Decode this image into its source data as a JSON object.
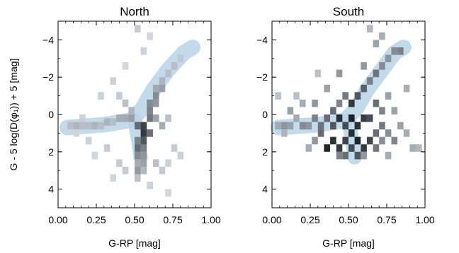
{
  "chart_data": [
    {
      "type": "heatmap",
      "title": "North",
      "xlabel": "G-RP [mag]",
      "ylabel": "G - 5 log(D(φ₁)) + 5 [mag]",
      "xlim": [
        0.0,
        1.0
      ],
      "ylim": [
        5.0,
        -5.0
      ],
      "y_inverted": true,
      "x_ticks": [
        "0.00",
        "0.25",
        "0.50",
        "0.75",
        "1.00"
      ],
      "y_ticks": [
        "−4",
        "−2",
        "0",
        "2",
        "4"
      ],
      "y_tick_values": [
        -4,
        -2,
        0,
        2,
        4
      ],
      "x_tick_values": [
        0.0,
        0.25,
        0.5,
        0.75,
        1.0
      ],
      "grid": false,
      "bin_width": [
        0.04,
        0.4
      ],
      "colormap": "greys",
      "isochrone_band": {
        "color": "#b9d3e8",
        "points": [
          [
            0.06,
            0.7
          ],
          [
            0.3,
            0.55
          ],
          [
            0.48,
            0.3
          ],
          [
            0.55,
            -0.3
          ],
          [
            0.62,
            -1.3
          ],
          [
            0.72,
            -2.4
          ],
          [
            0.82,
            -3.3
          ],
          [
            0.88,
            -3.6
          ]
        ],
        "branch": [
          [
            0.5,
            0.3
          ],
          [
            0.52,
            1.2
          ],
          [
            0.54,
            2.3
          ]
        ]
      },
      "bins": [
        {
          "x": 0.08,
          "y": 0.6,
          "v": 0.2
        },
        {
          "x": 0.12,
          "y": 0.6,
          "v": 0.25
        },
        {
          "x": 0.16,
          "y": 0.6,
          "v": 0.2
        },
        {
          "x": 0.2,
          "y": 0.6,
          "v": 0.2
        },
        {
          "x": 0.24,
          "y": 0.6,
          "v": 0.25
        },
        {
          "x": 0.28,
          "y": 0.6,
          "v": 0.2
        },
        {
          "x": 0.32,
          "y": 0.4,
          "v": 0.25
        },
        {
          "x": 0.36,
          "y": 0.4,
          "v": 0.2
        },
        {
          "x": 0.4,
          "y": 0.2,
          "v": 0.3
        },
        {
          "x": 0.44,
          "y": 0.2,
          "v": 0.3
        },
        {
          "x": 0.48,
          "y": 0.2,
          "v": 0.35
        },
        {
          "x": 0.52,
          "y": 0.6,
          "v": 0.6
        },
        {
          "x": 0.56,
          "y": 0.6,
          "v": 0.8
        },
        {
          "x": 0.56,
          "y": 1.0,
          "v": 0.85
        },
        {
          "x": 0.6,
          "y": 1.0,
          "v": 0.6
        },
        {
          "x": 0.56,
          "y": 1.4,
          "v": 0.7
        },
        {
          "x": 0.52,
          "y": 1.4,
          "v": 0.5
        },
        {
          "x": 0.52,
          "y": 1.8,
          "v": 0.6
        },
        {
          "x": 0.56,
          "y": 1.8,
          "v": 0.5
        },
        {
          "x": 0.52,
          "y": 2.2,
          "v": 0.45
        },
        {
          "x": 0.56,
          "y": 2.2,
          "v": 0.4
        },
        {
          "x": 0.52,
          "y": 2.6,
          "v": 0.3
        },
        {
          "x": 0.56,
          "y": 2.6,
          "v": 0.35
        },
        {
          "x": 0.52,
          "y": 3.0,
          "v": 0.4
        },
        {
          "x": 0.56,
          "y": 3.0,
          "v": 0.25
        },
        {
          "x": 0.52,
          "y": 3.4,
          "v": 0.2
        },
        {
          "x": 0.6,
          "y": 0.2,
          "v": 0.55
        },
        {
          "x": 0.6,
          "y": -0.2,
          "v": 0.5
        },
        {
          "x": 0.6,
          "y": -0.6,
          "v": 0.45
        },
        {
          "x": 0.64,
          "y": -0.6,
          "v": 0.4
        },
        {
          "x": 0.64,
          "y": -1.0,
          "v": 0.45
        },
        {
          "x": 0.64,
          "y": -1.4,
          "v": 0.3
        },
        {
          "x": 0.68,
          "y": -1.4,
          "v": 0.35
        },
        {
          "x": 0.68,
          "y": -1.8,
          "v": 0.25
        },
        {
          "x": 0.72,
          "y": -2.2,
          "v": 0.2
        },
        {
          "x": 0.76,
          "y": -2.6,
          "v": 0.2
        },
        {
          "x": 0.8,
          "y": -3.0,
          "v": 0.15
        },
        {
          "x": 0.68,
          "y": 0.6,
          "v": 0.3
        },
        {
          "x": 0.64,
          "y": 0.2,
          "v": 0.35
        },
        {
          "x": 0.72,
          "y": 0.2,
          "v": 0.2
        },
        {
          "x": 0.4,
          "y": -1.0,
          "v": 0.15
        },
        {
          "x": 0.28,
          "y": -1.0,
          "v": 0.12
        },
        {
          "x": 0.36,
          "y": -1.8,
          "v": 0.12
        },
        {
          "x": 0.44,
          "y": -2.6,
          "v": 0.1
        },
        {
          "x": 0.56,
          "y": -3.4,
          "v": 0.12
        },
        {
          "x": 0.6,
          "y": -4.2,
          "v": 0.1
        },
        {
          "x": 0.52,
          "y": -4.6,
          "v": 0.15
        },
        {
          "x": 0.2,
          "y": 1.4,
          "v": 0.12
        },
        {
          "x": 0.24,
          "y": 2.2,
          "v": 0.1
        },
        {
          "x": 0.32,
          "y": 1.8,
          "v": 0.15
        },
        {
          "x": 0.4,
          "y": 2.6,
          "v": 0.15
        },
        {
          "x": 0.44,
          "y": 3.0,
          "v": 0.15
        },
        {
          "x": 0.36,
          "y": 3.4,
          "v": 0.1
        },
        {
          "x": 0.64,
          "y": 2.6,
          "v": 0.2
        },
        {
          "x": 0.68,
          "y": 3.0,
          "v": 0.15
        },
        {
          "x": 0.72,
          "y": 2.6,
          "v": 0.12
        },
        {
          "x": 0.76,
          "y": 1.8,
          "v": 0.15
        },
        {
          "x": 0.8,
          "y": 2.2,
          "v": 0.12
        },
        {
          "x": 0.6,
          "y": 3.8,
          "v": 0.12
        },
        {
          "x": 0.72,
          "y": 4.2,
          "v": 0.1
        },
        {
          "x": 0.44,
          "y": -0.6,
          "v": 0.2
        },
        {
          "x": 0.48,
          "y": -0.2,
          "v": 0.25
        },
        {
          "x": 0.12,
          "y": 1.0,
          "v": 0.1
        },
        {
          "x": 0.16,
          "y": 0.2,
          "v": 0.12
        }
      ]
    },
    {
      "type": "heatmap",
      "title": "South",
      "xlabel": "G-RP [mag]",
      "ylabel": "",
      "xlim": [
        0.0,
        1.0
      ],
      "ylim": [
        5.0,
        -5.0
      ],
      "y_inverted": true,
      "x_ticks": [
        "0.00",
        "0.25",
        "0.50",
        "0.75",
        "1.00"
      ],
      "y_ticks": [
        "−4",
        "−2",
        "0",
        "2",
        "4"
      ],
      "y_tick_values": [
        -4,
        -2,
        0,
        2,
        4
      ],
      "x_tick_values": [
        0.0,
        0.25,
        0.5,
        0.75,
        1.0
      ],
      "grid": false,
      "bin_width": [
        0.04,
        0.4
      ],
      "colormap": "greys",
      "isochrone_band": {
        "color": "#b9d3e8",
        "points": [
          [
            0.04,
            0.7
          ],
          [
            0.3,
            0.55
          ],
          [
            0.48,
            0.3
          ],
          [
            0.55,
            -0.3
          ],
          [
            0.62,
            -1.3
          ],
          [
            0.72,
            -2.4
          ],
          [
            0.8,
            -3.3
          ],
          [
            0.86,
            -3.6
          ]
        ],
        "branch": [
          [
            0.5,
            0.3
          ],
          [
            0.52,
            1.2
          ],
          [
            0.54,
            2.3
          ]
        ]
      },
      "bins": [
        {
          "x": 0.04,
          "y": 0.6,
          "v": 0.3
        },
        {
          "x": 0.08,
          "y": 0.6,
          "v": 0.4
        },
        {
          "x": 0.12,
          "y": 0.6,
          "v": 0.35
        },
        {
          "x": 0.16,
          "y": 0.2,
          "v": 0.3
        },
        {
          "x": 0.2,
          "y": 0.6,
          "v": 0.45
        },
        {
          "x": 0.24,
          "y": 0.6,
          "v": 0.4
        },
        {
          "x": 0.28,
          "y": 0.2,
          "v": 0.5
        },
        {
          "x": 0.32,
          "y": 0.6,
          "v": 0.55
        },
        {
          "x": 0.36,
          "y": 0.2,
          "v": 0.6
        },
        {
          "x": 0.4,
          "y": 0.6,
          "v": 0.7
        },
        {
          "x": 0.44,
          "y": 0.2,
          "v": 0.9
        },
        {
          "x": 0.48,
          "y": 0.6,
          "v": 0.75
        },
        {
          "x": 0.4,
          "y": -0.2,
          "v": 0.6
        },
        {
          "x": 0.44,
          "y": -0.6,
          "v": 0.5
        },
        {
          "x": 0.48,
          "y": -1.0,
          "v": 0.55
        },
        {
          "x": 0.52,
          "y": -0.6,
          "v": 0.85
        },
        {
          "x": 0.56,
          "y": -1.0,
          "v": 0.7
        },
        {
          "x": 0.6,
          "y": -1.4,
          "v": 0.65
        },
        {
          "x": 0.64,
          "y": -1.8,
          "v": 0.5
        },
        {
          "x": 0.68,
          "y": -2.2,
          "v": 0.55
        },
        {
          "x": 0.72,
          "y": -2.6,
          "v": 0.45
        },
        {
          "x": 0.76,
          "y": -3.0,
          "v": 0.4
        },
        {
          "x": 0.8,
          "y": -3.4,
          "v": 0.45
        },
        {
          "x": 0.84,
          "y": -3.4,
          "v": 0.5
        },
        {
          "x": 0.6,
          "y": -2.6,
          "v": 0.4
        },
        {
          "x": 0.68,
          "y": -3.8,
          "v": 0.35
        },
        {
          "x": 0.72,
          "y": -4.2,
          "v": 0.3
        },
        {
          "x": 0.64,
          "y": -4.6,
          "v": 0.25
        },
        {
          "x": 0.52,
          "y": 0.2,
          "v": 0.95
        },
        {
          "x": 0.56,
          "y": 0.6,
          "v": 0.9
        },
        {
          "x": 0.6,
          "y": 0.2,
          "v": 0.85
        },
        {
          "x": 0.52,
          "y": 1.0,
          "v": 0.9
        },
        {
          "x": 0.56,
          "y": 1.4,
          "v": 0.95
        },
        {
          "x": 0.48,
          "y": 1.4,
          "v": 0.8
        },
        {
          "x": 0.44,
          "y": 1.8,
          "v": 0.85
        },
        {
          "x": 0.4,
          "y": 1.4,
          "v": 0.9
        },
        {
          "x": 0.36,
          "y": 1.8,
          "v": 0.95
        },
        {
          "x": 0.48,
          "y": 2.2,
          "v": 0.6
        },
        {
          "x": 0.52,
          "y": 1.8,
          "v": 0.75
        },
        {
          "x": 0.6,
          "y": 1.8,
          "v": 0.85
        },
        {
          "x": 0.64,
          "y": 1.4,
          "v": 0.8
        },
        {
          "x": 0.68,
          "y": 1.0,
          "v": 0.6
        },
        {
          "x": 0.72,
          "y": 0.6,
          "v": 0.55
        },
        {
          "x": 0.76,
          "y": 1.0,
          "v": 0.45
        },
        {
          "x": 0.8,
          "y": 1.4,
          "v": 0.5
        },
        {
          "x": 0.84,
          "y": 0.6,
          "v": 0.35
        },
        {
          "x": 0.88,
          "y": 1.0,
          "v": 0.3
        },
        {
          "x": 0.92,
          "y": 1.8,
          "v": 0.3
        },
        {
          "x": 0.96,
          "y": 1.8,
          "v": 0.25
        },
        {
          "x": 0.32,
          "y": 1.0,
          "v": 0.6
        },
        {
          "x": 0.28,
          "y": 1.4,
          "v": 0.4
        },
        {
          "x": 0.24,
          "y": 1.8,
          "v": 0.3
        },
        {
          "x": 0.2,
          "y": -0.6,
          "v": 0.3
        },
        {
          "x": 0.16,
          "y": -1.0,
          "v": 0.2
        },
        {
          "x": 0.36,
          "y": -1.4,
          "v": 0.35
        },
        {
          "x": 0.3,
          "y": -2.2,
          "v": 0.2
        },
        {
          "x": 0.44,
          "y": -2.2,
          "v": 0.4
        },
        {
          "x": 0.44,
          "y": 2.2,
          "v": 0.5
        },
        {
          "x": 0.56,
          "y": 2.2,
          "v": 0.7
        },
        {
          "x": 0.6,
          "y": 2.2,
          "v": 0.4
        },
        {
          "x": 0.68,
          "y": 1.8,
          "v": 0.55
        },
        {
          "x": 0.72,
          "y": 1.4,
          "v": 0.45
        },
        {
          "x": 0.76,
          "y": 2.2,
          "v": 0.3
        },
        {
          "x": 0.64,
          "y": 0.2,
          "v": 0.75
        },
        {
          "x": 0.68,
          "y": -0.6,
          "v": 0.6
        },
        {
          "x": 0.72,
          "y": -0.2,
          "v": 0.5
        },
        {
          "x": 0.76,
          "y": -1.0,
          "v": 0.35
        },
        {
          "x": 0.8,
          "y": -0.2,
          "v": 0.35
        },
        {
          "x": 0.88,
          "y": -1.4,
          "v": 0.3
        },
        {
          "x": 0.12,
          "y": -0.2,
          "v": 0.35
        },
        {
          "x": 0.08,
          "y": 1.0,
          "v": 0.25
        },
        {
          "x": 0.04,
          "y": -1.0,
          "v": 0.2
        },
        {
          "x": 0.28,
          "y": -0.6,
          "v": 0.4
        }
      ]
    }
  ]
}
